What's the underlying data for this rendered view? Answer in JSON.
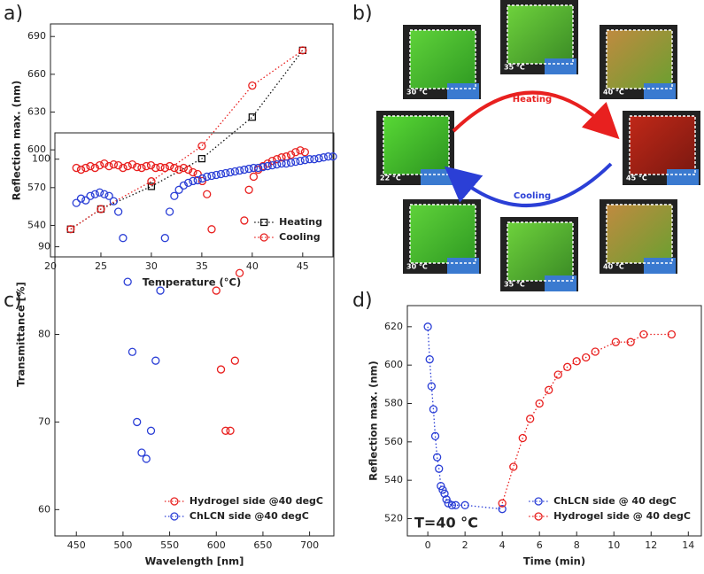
{
  "panel_labels": [
    "a)",
    "b)",
    "c)",
    "d)"
  ],
  "diagram": {
    "arrows": [
      "Heating",
      "Cooling"
    ],
    "temperatures": [
      "30 °C",
      "35 °C",
      "40 °C",
      "22 °C",
      "45 °C",
      "30 °C",
      "35 °C",
      "40 °C"
    ]
  },
  "chart_data": [
    {
      "type": "scatter",
      "connect": true,
      "legend": "lower right",
      "x_label": "Temperature (°C)",
      "y_label": "Reflection max. (nm)",
      "x": [
        22,
        25,
        30,
        35,
        40,
        45
      ],
      "series": [
        {
          "name": "Heating",
          "color": "#111111",
          "marker": "square",
          "values": [
            537,
            553,
            571,
            593,
            626,
            679
          ]
        },
        {
          "name": "Cooling",
          "color": "#e8201f",
          "marker": "circle",
          "values": [
            537,
            553,
            575,
            603,
            651,
            679
          ]
        }
      ],
      "xlim": [
        20,
        48
      ],
      "ylim": [
        515,
        700
      ],
      "xticks": [
        20,
        25,
        30,
        35,
        40,
        45
      ],
      "yticks": [
        540,
        570,
        600,
        630,
        660,
        690
      ]
    },
    {
      "type": "scatter",
      "connect": false,
      "legend": "lower right",
      "x_label": "Wavelength [nm]",
      "y_label": "Transmittance [%]",
      "series": [
        {
          "name": "Hydrogel side @40 degC",
          "color": "#e8201f",
          "marker": "circle",
          "x": [
            450,
            455,
            460,
            465,
            470,
            475,
            480,
            485,
            490,
            495,
            500,
            505,
            510,
            515,
            520,
            525,
            530,
            535,
            540,
            545,
            550,
            555,
            560,
            565,
            570,
            575,
            580,
            585,
            590,
            595,
            600,
            605,
            610,
            615,
            620,
            625,
            630,
            635,
            640,
            645,
            650,
            655,
            660,
            665,
            670,
            675,
            680,
            685,
            690,
            695
          ],
          "values": [
            99,
            98.8,
            99,
            99.2,
            99,
            99.3,
            99.5,
            99.2,
            99.4,
            99.3,
            99,
            99.2,
            99.4,
            99.1,
            99,
            99.2,
            99.3,
            99,
            99.1,
            99,
            99.2,
            99,
            98.8,
            99,
            98.8,
            98.5,
            98.3,
            97.5,
            96,
            92,
            85,
            76,
            69,
            69,
            77,
            87,
            93,
            96.5,
            98,
            98.8,
            99.2,
            99.5,
            99.8,
            100,
            100.2,
            100.3,
            100.5,
            100.8,
            101,
            100.8
          ]
        },
        {
          "name": "ChLCN side @40 degC",
          "color": "#2b3fd6",
          "marker": "circle",
          "x": [
            450,
            455,
            460,
            465,
            470,
            475,
            480,
            485,
            490,
            495,
            500,
            505,
            510,
            515,
            520,
            525,
            530,
            535,
            540,
            545,
            550,
            555,
            560,
            565,
            570,
            575,
            580,
            585,
            590,
            595,
            600,
            605,
            610,
            615,
            620,
            625,
            630,
            635,
            640,
            645,
            650,
            655,
            660,
            665,
            670,
            675,
            680,
            685,
            690,
            695,
            700,
            705,
            710,
            715,
            720,
            725
          ],
          "values": [
            95,
            95.5,
            95.3,
            95.8,
            96,
            96.2,
            96,
            95.8,
            95.2,
            94,
            91,
            86,
            78,
            70,
            66.5,
            65.8,
            69,
            77,
            85,
            91,
            94,
            95.8,
            96.5,
            97,
            97.3,
            97.5,
            97.6,
            97.8,
            98,
            98.1,
            98.2,
            98.3,
            98.4,
            98.5,
            98.6,
            98.7,
            98.8,
            98.9,
            99,
            99,
            99.1,
            99.2,
            99.3,
            99.4,
            99.5,
            99.5,
            99.6,
            99.7,
            99.8,
            99.9,
            100,
            100,
            100.1,
            100.2,
            100.3,
            100.3
          ]
        }
      ],
      "xlim": [
        427,
        726
      ],
      "ylim": [
        57,
        103
      ],
      "xticks": [
        450,
        500,
        550,
        600,
        650,
        700
      ],
      "yticks": [
        60,
        70,
        80,
        90,
        100
      ]
    },
    {
      "type": "scatter",
      "connect": true,
      "legend": "lower right",
      "x_label": "Time (min)",
      "y_label": "Reflection max. (nm)",
      "annotation": "T=40 °C",
      "series": [
        {
          "name": "ChLCN side @ 40 degC",
          "color": "#2b3fd6",
          "marker": "circle",
          "x": [
            0,
            0.1,
            0.2,
            0.3,
            0.4,
            0.5,
            0.6,
            0.7,
            0.8,
            0.9,
            1.0,
            1.1,
            1.3,
            1.5,
            2,
            4
          ],
          "values": [
            620,
            603,
            589,
            577,
            563,
            552,
            546,
            537,
            535,
            533,
            530,
            528,
            527,
            527,
            527,
            525
          ]
        },
        {
          "name": "Hydrogel side @ 40 degC",
          "color": "#e8201f",
          "marker": "circle",
          "x": [
            4,
            4.6,
            5.1,
            5.5,
            6,
            6.5,
            7,
            7.5,
            8,
            8.5,
            9,
            10.1,
            10.9,
            11.6,
            13.1
          ],
          "values": [
            528,
            547,
            562,
            572,
            580,
            587,
            595,
            599,
            602,
            604,
            607,
            612,
            612,
            616,
            616
          ]
        }
      ],
      "xlim": [
        -1.1,
        14.7
      ],
      "ylim": [
        511,
        631
      ],
      "xticks": [
        0,
        2,
        4,
        6,
        8,
        10,
        12,
        14
      ],
      "yticks": [
        520,
        540,
        560,
        580,
        600,
        620
      ]
    }
  ]
}
